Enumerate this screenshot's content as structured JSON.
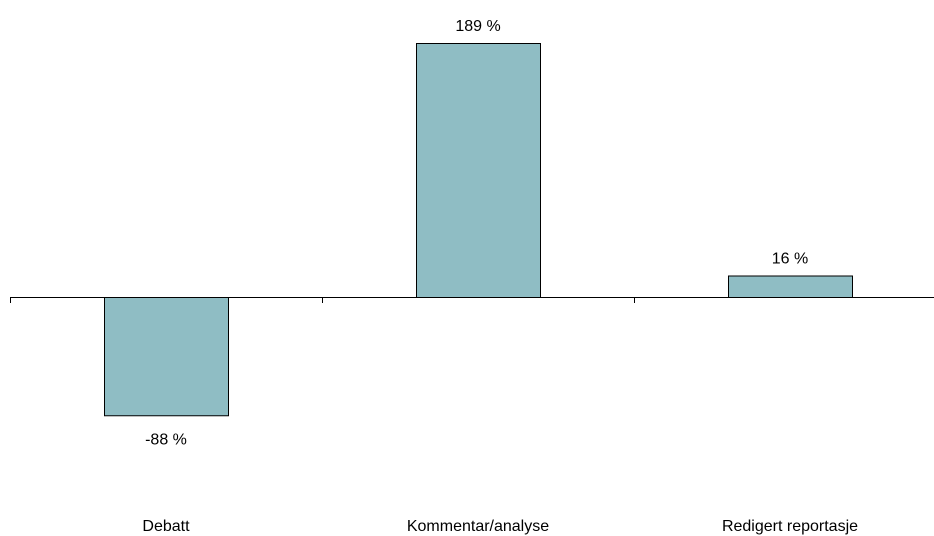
{
  "chart_data": {
    "type": "bar",
    "categories": [
      "Debatt",
      "Kommentar/analyse",
      "Redigert reportasje"
    ],
    "values": [
      -88,
      189,
      16
    ],
    "value_labels": [
      "-88 %",
      "189 %",
      "16 %"
    ],
    "title": "",
    "xlabel": "",
    "ylabel": "",
    "ylim": [
      -100,
      200
    ],
    "grid": false,
    "legend": "none",
    "bar_color": "#8FBDC4",
    "bar_edge_color": "#000000",
    "axis_color": "#000000"
  }
}
